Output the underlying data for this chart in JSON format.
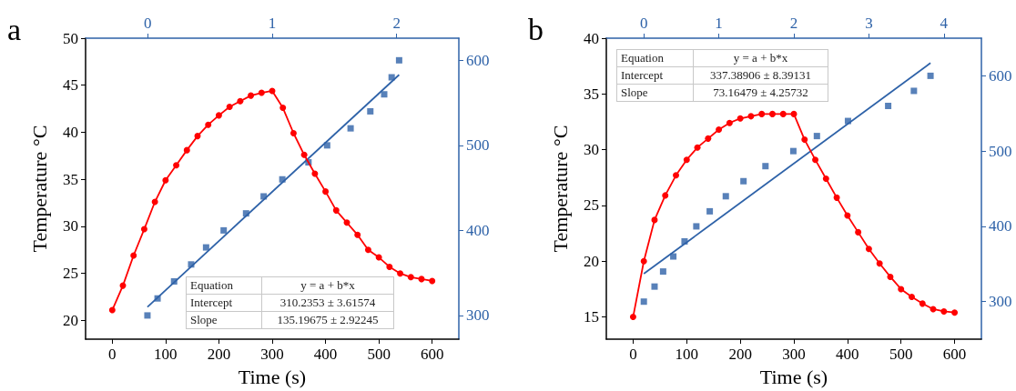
{
  "chart_data": [
    {
      "type": "line",
      "title": "a",
      "xlabel": "Time (s)",
      "ylabel": "Temperature °C",
      "xlim": [
        -50,
        650
      ],
      "xticks": [
        0,
        100,
        200,
        300,
        400,
        500,
        600
      ],
      "ylim": [
        18,
        50
      ],
      "yticks": [
        20,
        25,
        30,
        35,
        40,
        45,
        50
      ],
      "x2lim": [
        -0.5,
        2.5
      ],
      "x2ticks": [
        0,
        1,
        2
      ],
      "y2lim": [
        272,
        626
      ],
      "y2ticks": [
        300,
        400,
        500,
        600
      ],
      "annotations": [
        "Equation",
        "y = a + b*x",
        "Intercept",
        "310.2353 ± 3.61574",
        "Slope",
        "135.19675 ± 2.92245"
      ],
      "series": [
        {
          "type": "line",
          "color": "#ff0000",
          "marker": "circle",
          "x": [
            0,
            20,
            40,
            60,
            80,
            100,
            120,
            140,
            160,
            180,
            200,
            220,
            240,
            260,
            280,
            300,
            320,
            340,
            360,
            380,
            400,
            420,
            440,
            460,
            480,
            500,
            520,
            540,
            560,
            580,
            600
          ],
          "values": [
            21.1,
            23.7,
            26.9,
            29.7,
            32.6,
            34.9,
            36.5,
            38.1,
            39.6,
            40.8,
            41.8,
            42.7,
            43.3,
            43.9,
            44.2,
            44.4,
            42.6,
            39.9,
            37.6,
            35.6,
            33.7,
            31.7,
            30.4,
            29.1,
            27.5,
            26.7,
            25.7,
            25.0,
            24.6,
            24.4,
            24.2
          ]
        },
        {
          "type": "scatter",
          "axis": "y2",
          "color": "#2e62a8",
          "marker": "square",
          "x": [
            66,
            85,
            116,
            148,
            176,
            209,
            251,
            284,
            319,
            368,
            403,
            447,
            484,
            510,
            524,
            538
          ],
          "values": [
            300,
            320,
            340,
            360,
            380,
            400,
            420,
            440,
            460,
            480,
            500,
            520,
            540,
            560,
            580,
            600
          ]
        },
        {
          "type": "line",
          "axis": "y2",
          "color": "#2e62a8",
          "marker": "none",
          "x": [
            66,
            538
          ],
          "values": [
            310,
            583
          ]
        }
      ]
    },
    {
      "type": "line",
      "title": "b",
      "xlabel": "Time (s)",
      "ylabel": "Temperature °C",
      "xlim": [
        -50,
        650
      ],
      "xticks": [
        0,
        100,
        200,
        300,
        400,
        500,
        600
      ],
      "ylim": [
        13,
        40
      ],
      "yticks": [
        15,
        20,
        25,
        30,
        35,
        40
      ],
      "x2lim": [
        -0.5,
        4.5
      ],
      "x2ticks": [
        0,
        1,
        2,
        3,
        4
      ],
      "y2lim": [
        250,
        650
      ],
      "y2ticks": [
        300,
        400,
        500,
        600
      ],
      "annotations": [
        "Equation",
        "y = a + b*x",
        "Intercept",
        "337.38906 ± 8.39131",
        "Slope",
        "73.16479 ± 4.25732"
      ],
      "series": [
        {
          "type": "line",
          "color": "#ff0000",
          "marker": "circle",
          "x": [
            0,
            20,
            40,
            60,
            80,
            100,
            120,
            140,
            160,
            180,
            200,
            220,
            240,
            260,
            280,
            300,
            320,
            340,
            360,
            380,
            400,
            420,
            440,
            460,
            480,
            500,
            520,
            540,
            560,
            580,
            600
          ],
          "values": [
            15.0,
            20.0,
            23.7,
            25.9,
            27.7,
            29.1,
            30.2,
            31.0,
            31.8,
            32.4,
            32.8,
            33.0,
            33.2,
            33.2,
            33.2,
            33.2,
            30.9,
            29.1,
            27.4,
            25.7,
            24.1,
            22.6,
            21.1,
            19.8,
            18.6,
            17.5,
            16.8,
            16.2,
            15.7,
            15.5,
            15.4
          ]
        },
        {
          "type": "scatter",
          "axis": "y2",
          "color": "#2e62a8",
          "marker": "square",
          "x": [
            20,
            40,
            56,
            75,
            96,
            118,
            143,
            173,
            206,
            247,
            299,
            343,
            401,
            476,
            524,
            555
          ],
          "values": [
            300,
            320,
            340,
            360,
            380,
            400,
            420,
            440,
            460,
            480,
            500,
            520,
            540,
            560,
            580,
            600
          ]
        },
        {
          "type": "line",
          "axis": "y2",
          "color": "#2e62a8",
          "marker": "none",
          "x": [
            20,
            555
          ],
          "values": [
            337,
            617
          ]
        }
      ]
    }
  ]
}
